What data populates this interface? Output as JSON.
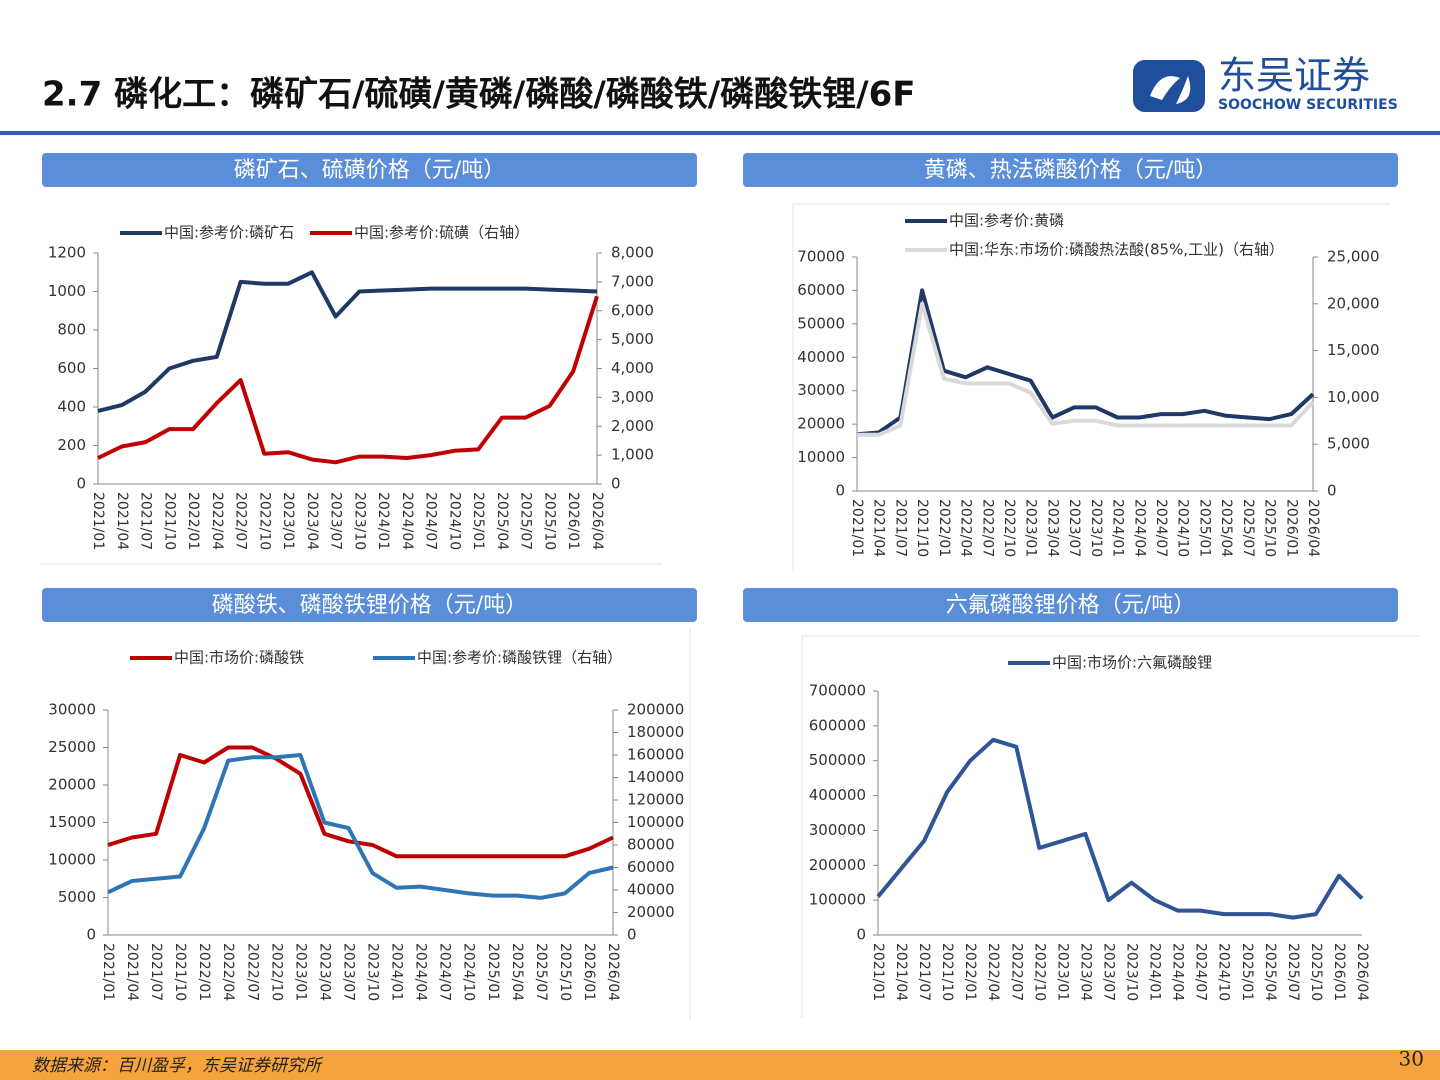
{
  "header": {
    "title": "2.7 磷化工：磷矿石/硫磺/黄磷/磷酸/磷酸铁/磷酸铁锂/6F",
    "logo_name": "东吴证券",
    "logo_sub": "SOOCHOW SECURITIES"
  },
  "chart_data": [
    {
      "type": "line",
      "title": "磷矿石、硫磺价格（元/吨）",
      "categories": [
        "2021/01",
        "2021/04",
        "2021/07",
        "2021/10",
        "2022/01",
        "2022/04",
        "2022/07",
        "2022/10",
        "2023/01",
        "2023/04",
        "2023/07",
        "2023/10",
        "2024/01",
        "2024/04",
        "2024/07",
        "2024/10",
        "2025/01",
        "2025/04",
        "2025/07",
        "2025/10",
        "2026/01",
        "2026/04"
      ],
      "series": [
        {
          "name": "中国:参考价:磷矿石",
          "color": "#1f3864",
          "values": [
            380,
            410,
            480,
            600,
            640,
            660,
            1050,
            1040,
            1040,
            1100,
            870,
            1000,
            1005,
            1010,
            1015,
            1015,
            1015,
            1015,
            1015,
            1010,
            1005,
            1000
          ]
        },
        {
          "name": "中国:参考价:硫磺（右轴）",
          "color": "#c00000",
          "axis": "y2",
          "values": [
            900,
            1300,
            1450,
            1900,
            1900,
            2800,
            3600,
            1050,
            1100,
            850,
            750,
            950,
            950,
            900,
            1000,
            1150,
            1200,
            2300,
            2300,
            2700,
            3900,
            6500
          ]
        }
      ],
      "ylim": [
        0,
        1200
      ],
      "yticks": [
        0,
        200,
        400,
        600,
        800,
        1000,
        1200
      ],
      "y2lim": [
        0,
        8000
      ],
      "y2ticks": [
        0,
        {
          "value": 1000,
          "label": "1,000"
        },
        {
          "value": 2000,
          "label": "2,000"
        },
        {
          "value": 3000,
          "label": "3,000"
        },
        {
          "value": 4000,
          "label": "4,000"
        },
        {
          "value": 5000,
          "label": "5,000"
        },
        {
          "value": 6000,
          "label": "6,000"
        },
        {
          "value": 7000,
          "label": "7,000"
        },
        {
          "value": 8000,
          "label": "8,000"
        }
      ],
      "grid": false
    },
    {
      "type": "line",
      "title": "黄磷、热法磷酸价格（元/吨）",
      "categories": [
        "2021/01",
        "2021/04",
        "2021/07",
        "2021/10",
        "2022/01",
        "2022/04",
        "2022/07",
        "2022/10",
        "2023/01",
        "2023/04",
        "2023/07",
        "2023/10",
        "2024/01",
        "2024/04",
        "2024/07",
        "2024/10",
        "2025/01",
        "2025/04",
        "2025/07",
        "2025/10",
        "2026/01",
        "2026/04"
      ],
      "series": [
        {
          "name": "中国:参考价:黄磷",
          "color": "#1f3864",
          "values": [
            17000,
            17500,
            22000,
            60000,
            36000,
            34000,
            37000,
            35000,
            33000,
            22000,
            25000,
            25000,
            22000,
            22000,
            23000,
            23000,
            24000,
            22500,
            22000,
            21500,
            23000,
            29000
          ]
        },
        {
          "name": "中国:华东:市场价:磷酸热法酸(85%,工业)（右轴）",
          "color": "#d9d9d9",
          "axis": "y2",
          "values": [
            6000,
            6000,
            7000,
            20000,
            12000,
            11500,
            11500,
            11500,
            10500,
            7200,
            7500,
            7500,
            7000,
            7000,
            7000,
            7000,
            7000,
            7000,
            7000,
            7000,
            7000,
            9500
          ]
        }
      ],
      "ylim": [
        0,
        70000
      ],
      "yticks": [
        0,
        10000,
        20000,
        30000,
        40000,
        50000,
        60000,
        70000
      ],
      "y2lim": [
        0,
        25000
      ],
      "y2ticks": [
        0,
        {
          "value": 5000,
          "label": "5,000"
        },
        {
          "value": 10000,
          "label": "10,000"
        },
        {
          "value": 15000,
          "label": "15,000"
        },
        {
          "value": 20000,
          "label": "20,000"
        },
        {
          "value": 25000,
          "label": "25,000"
        }
      ],
      "grid": false
    },
    {
      "type": "line",
      "title": "磷酸铁、磷酸铁锂价格（元/吨）",
      "categories": [
        "2021/01",
        "2021/04",
        "2021/07",
        "2021/10",
        "2022/01",
        "2022/04",
        "2022/07",
        "2022/10",
        "2023/01",
        "2023/04",
        "2023/07",
        "2023/10",
        "2024/01",
        "2024/04",
        "2024/07",
        "2024/10",
        "2025/01",
        "2025/04",
        "2025/07",
        "2025/10",
        "2026/01",
        "2026/04"
      ],
      "series": [
        {
          "name": "中国:市场价:磷酸铁",
          "color": "#c00000",
          "values": [
            12000,
            13000,
            13500,
            24000,
            23000,
            25000,
            25000,
            23500,
            21500,
            13500,
            12500,
            12000,
            10500,
            10500,
            10500,
            10500,
            10500,
            10500,
            10500,
            10500,
            11500,
            13000
          ]
        },
        {
          "name": "中国:参考价:磷酸铁锂（右轴）",
          "color": "#2e75b6",
          "axis": "y2",
          "values": [
            38000,
            48000,
            50000,
            52000,
            95000,
            155000,
            158000,
            158000,
            160000,
            100000,
            95000,
            55000,
            42000,
            43000,
            40000,
            37000,
            35000,
            35000,
            33000,
            37000,
            55000,
            60000
          ]
        }
      ],
      "ylim": [
        0,
        30000
      ],
      "yticks": [
        0,
        5000,
        10000,
        15000,
        20000,
        25000,
        30000
      ],
      "y2lim": [
        0,
        200000
      ],
      "y2ticks": [
        0,
        20000,
        40000,
        60000,
        80000,
        100000,
        120000,
        140000,
        160000,
        180000,
        200000
      ],
      "grid": false
    },
    {
      "type": "line",
      "title": "六氟磷酸锂价格（元/吨）",
      "categories": [
        "2021/01",
        "2021/04",
        "2021/07",
        "2021/10",
        "2022/01",
        "2022/04",
        "2022/07",
        "2022/10",
        "2023/01",
        "2023/04",
        "2023/07",
        "2023/10",
        "2024/01",
        "2024/04",
        "2024/07",
        "2024/10",
        "2025/01",
        "2025/04",
        "2025/07",
        "2025/10",
        "2026/01",
        "2026/04"
      ],
      "series": [
        {
          "name": "中国:市场价:六氟磷酸锂",
          "color": "#2f5597",
          "values": [
            110000,
            190000,
            270000,
            410000,
            500000,
            560000,
            540000,
            250000,
            270000,
            290000,
            100000,
            150000,
            100000,
            70000,
            70000,
            60000,
            60000,
            60000,
            50000,
            60000,
            170000,
            105000
          ]
        }
      ],
      "ylim": [
        0,
        700000
      ],
      "yticks": [
        0,
        100000,
        200000,
        300000,
        400000,
        500000,
        600000,
        700000
      ],
      "grid": false
    }
  ],
  "footer": {
    "source": "数据来源：百川盈孚，东吴证券研究所",
    "page": "30"
  }
}
